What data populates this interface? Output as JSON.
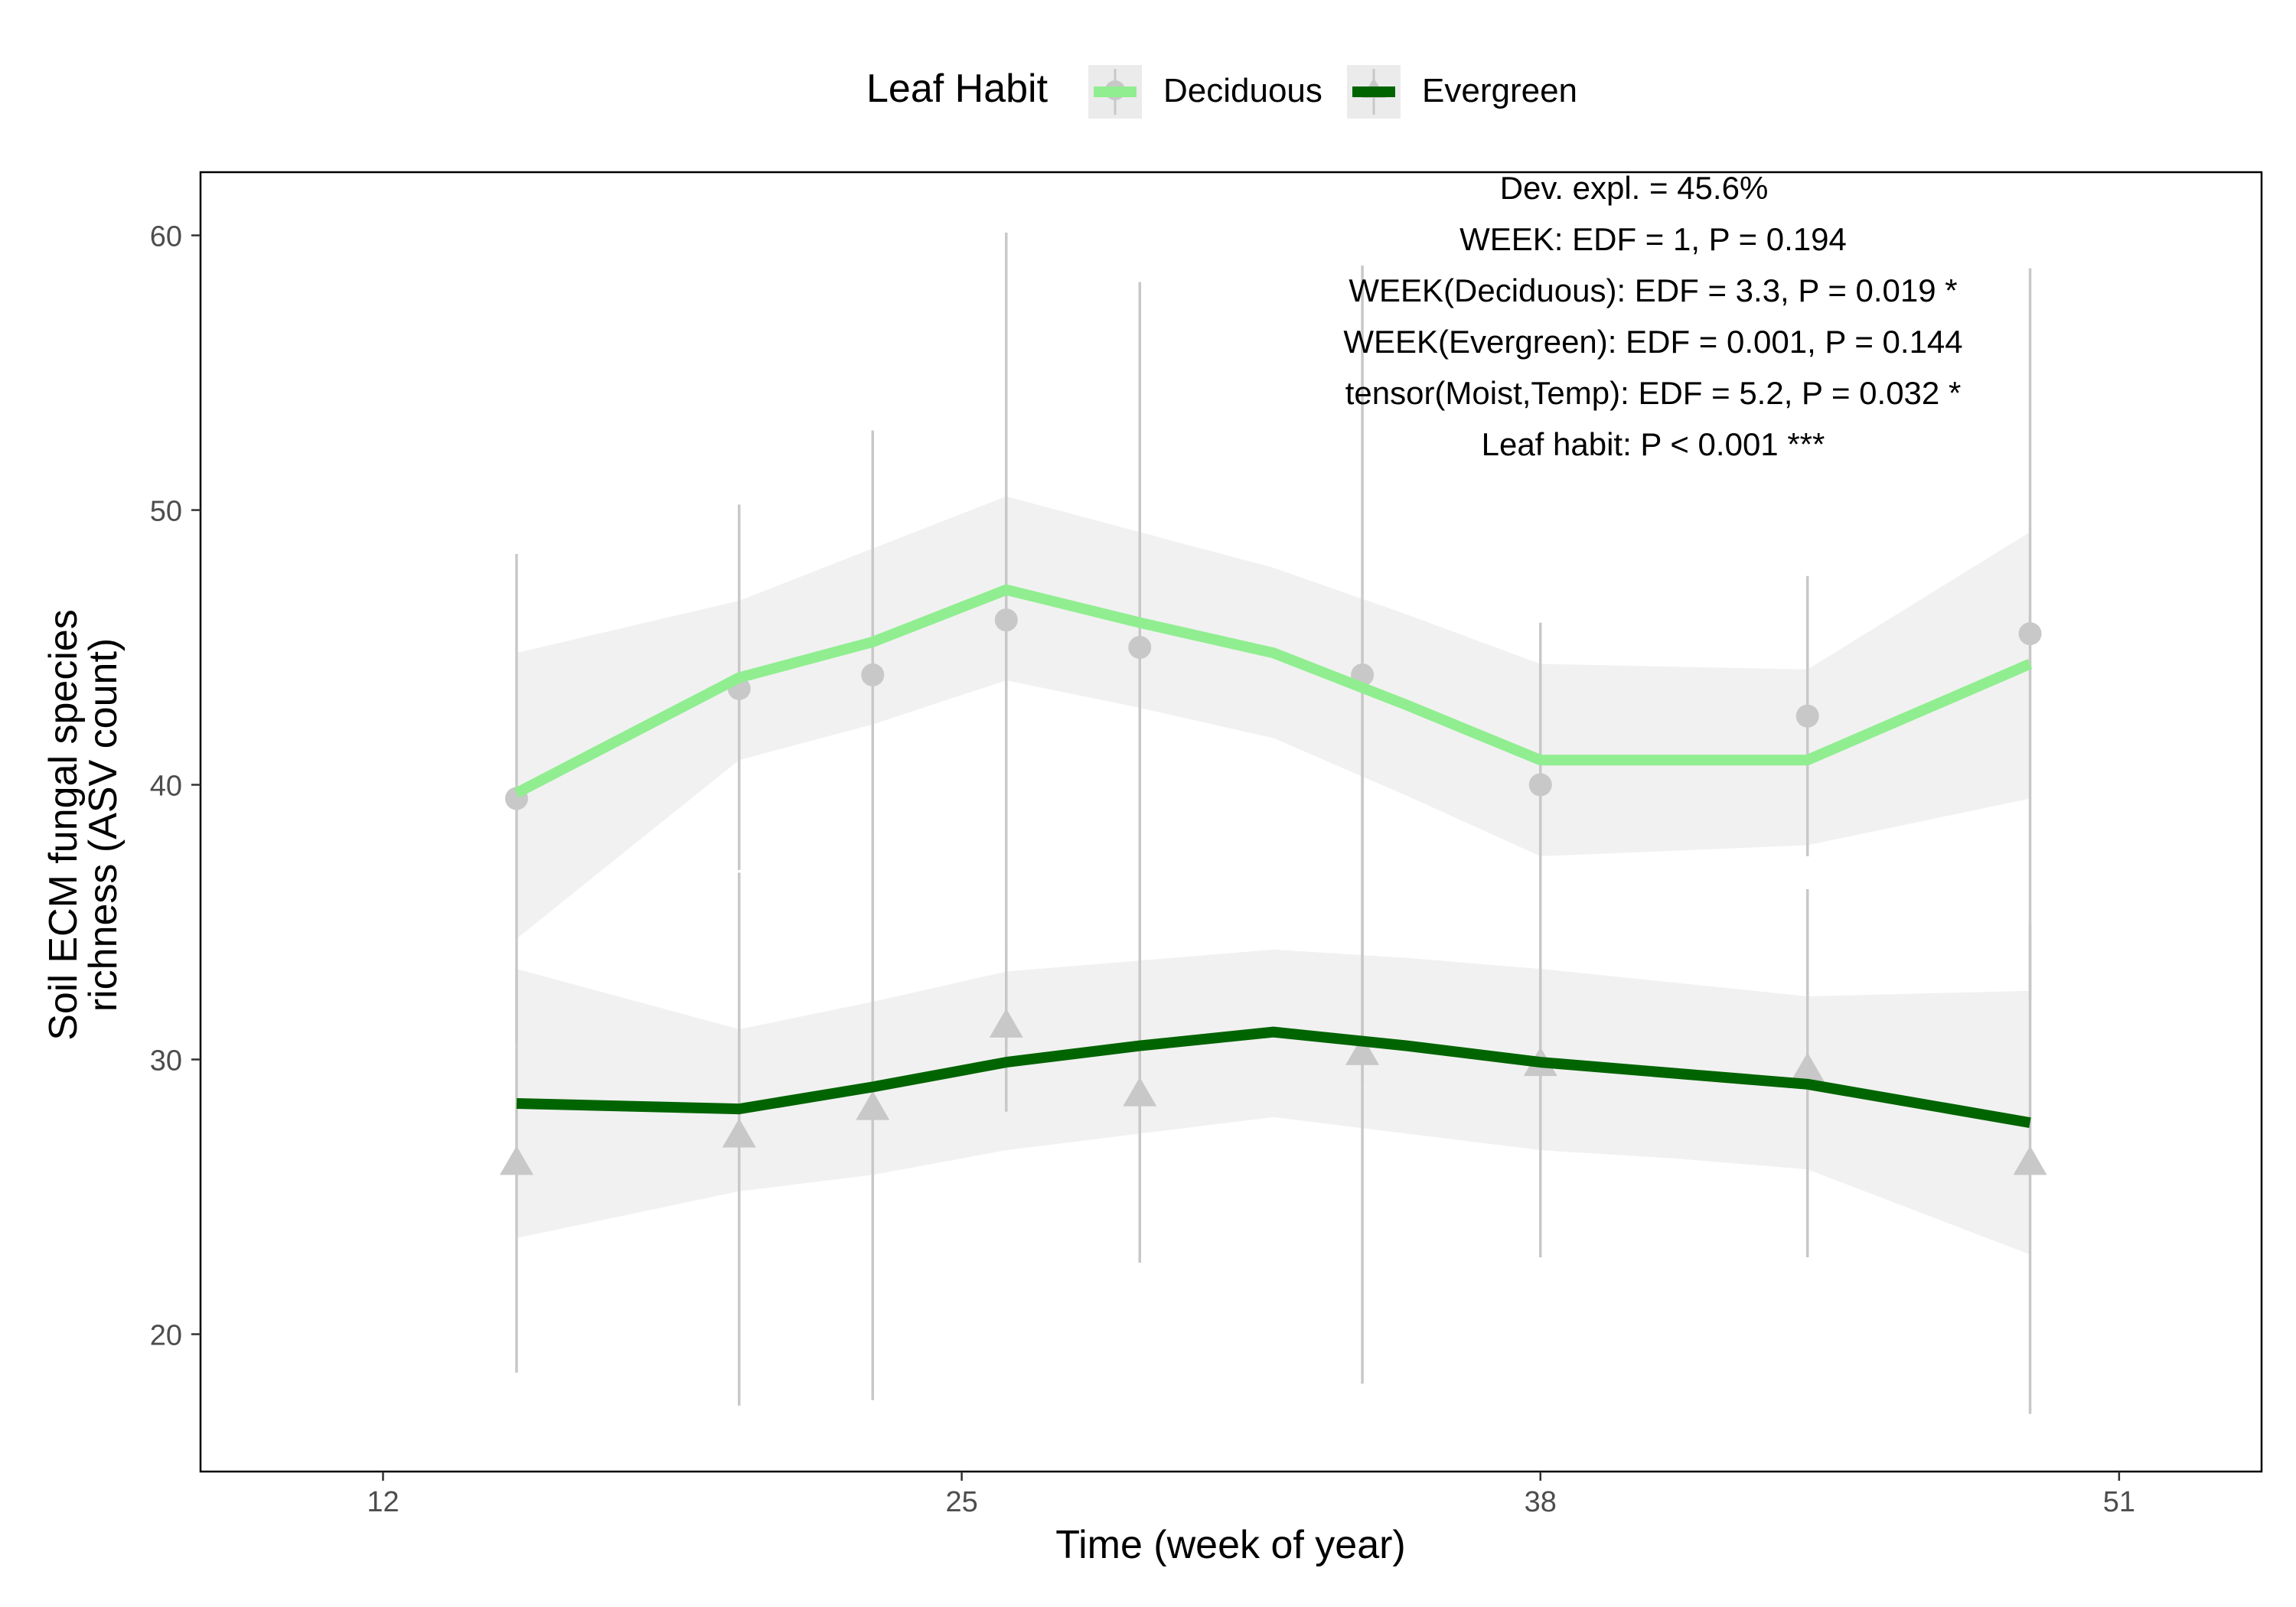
{
  "chart_data": {
    "type": "line",
    "title": "",
    "xlabel": "Time (week of year)",
    "ylabel_lines": [
      "Soil ECM fungal species",
      "richness (ASV count)"
    ],
    "xlim": [
      7.9,
      54.2
    ],
    "ylim": [
      15,
      62.3
    ],
    "x_ticks": [
      12,
      25,
      38,
      51
    ],
    "y_ticks": [
      20,
      30,
      40,
      50,
      60
    ],
    "grid": false,
    "legend": {
      "title": "Leaf Habit",
      "position": "top",
      "entries": [
        "Deciduous",
        "Evergreen"
      ]
    },
    "annotations": [
      "Dev. expl. = 45.6%",
      "WEEK: EDF = 1, P = 0.194",
      "WEEK(Deciduous): EDF = 3.3, P = 0.019 *",
      "WEEK(Evergreen): EDF = 0.001, P = 0.144",
      "tensor(Moist,Temp): EDF = 5.2, P = 0.032 *",
      "Leaf habit: P < 0.001 ***"
    ],
    "series": [
      {
        "name": "Deciduous",
        "color": "#90EE90",
        "marker": "circle",
        "fit_x": [
          15,
          20,
          23,
          26,
          29,
          32,
          35,
          38,
          41,
          44,
          49
        ],
        "fit_y": [
          39.7,
          43.9,
          45.2,
          47.1,
          45.9,
          44.8,
          42.9,
          40.9,
          40.9,
          40.9,
          44.4
        ],
        "ci_lower": [
          34.4,
          40.9,
          42.2,
          43.8,
          42.8,
          41.7,
          39.6,
          37.4,
          37.6,
          37.8,
          39.5
        ],
        "ci_upper": [
          44.8,
          46.7,
          48.6,
          50.5,
          49.2,
          47.9,
          46.2,
          44.4,
          44.3,
          44.2,
          49.2
        ],
        "points": [
          {
            "x": 15,
            "y": 39.5,
            "lo": 30.6,
            "hi": 48.4
          },
          {
            "x": 20,
            "y": 43.5,
            "lo": 36.9,
            "hi": 50.2
          },
          {
            "x": 23,
            "y": 44.0,
            "lo": 35.2,
            "hi": 52.9
          },
          {
            "x": 26,
            "y": 46.0,
            "lo": 31.9,
            "hi": 60.1
          },
          {
            "x": 29,
            "y": 45.0,
            "lo": 31.7,
            "hi": 58.3
          },
          {
            "x": 34,
            "y": 44.0,
            "lo": 29.1,
            "hi": 58.9
          },
          {
            "x": 38,
            "y": 40.0,
            "lo": 34.1,
            "hi": 45.9
          },
          {
            "x": 44,
            "y": 42.5,
            "lo": 37.4,
            "hi": 47.6
          },
          {
            "x": 49,
            "y": 45.5,
            "lo": 32.2,
            "hi": 58.8
          }
        ]
      },
      {
        "name": "Evergreen",
        "color": "#006400",
        "marker": "triangle",
        "fit_x": [
          15,
          20,
          23,
          26,
          29,
          32,
          35,
          38,
          41,
          44,
          49
        ],
        "fit_y": [
          28.4,
          28.2,
          29.0,
          29.9,
          30.5,
          31.0,
          30.5,
          29.9,
          29.5,
          29.1,
          27.7
        ],
        "ci_lower": [
          23.5,
          25.2,
          25.8,
          26.7,
          27.3,
          27.9,
          27.3,
          26.7,
          26.4,
          26.0,
          22.9
        ],
        "ci_upper": [
          33.3,
          31.1,
          32.1,
          33.2,
          33.6,
          34.0,
          33.7,
          33.3,
          32.8,
          32.3,
          32.5
        ],
        "points": [
          {
            "x": 15,
            "y": 26.2,
            "lo": 18.6,
            "hi": 33.3
          },
          {
            "x": 20,
            "y": 27.2,
            "lo": 17.4,
            "hi": 36.8
          },
          {
            "x": 23,
            "y": 28.2,
            "lo": 17.6,
            "hi": 38.2
          },
          {
            "x": 26,
            "y": 31.2,
            "lo": 28.1,
            "hi": 34.0
          },
          {
            "x": 29,
            "y": 28.7,
            "lo": 22.6,
            "hi": 34.3
          },
          {
            "x": 34,
            "y": 30.2,
            "lo": 18.2,
            "hi": 42.4
          },
          {
            "x": 38,
            "y": 29.8,
            "lo": 22.8,
            "hi": 36.2
          },
          {
            "x": 44,
            "y": 29.6,
            "lo": 22.8,
            "hi": 36.2
          },
          {
            "x": 49,
            "y": 26.2,
            "lo": 17.1,
            "hi": 34.9
          }
        ]
      }
    ]
  }
}
